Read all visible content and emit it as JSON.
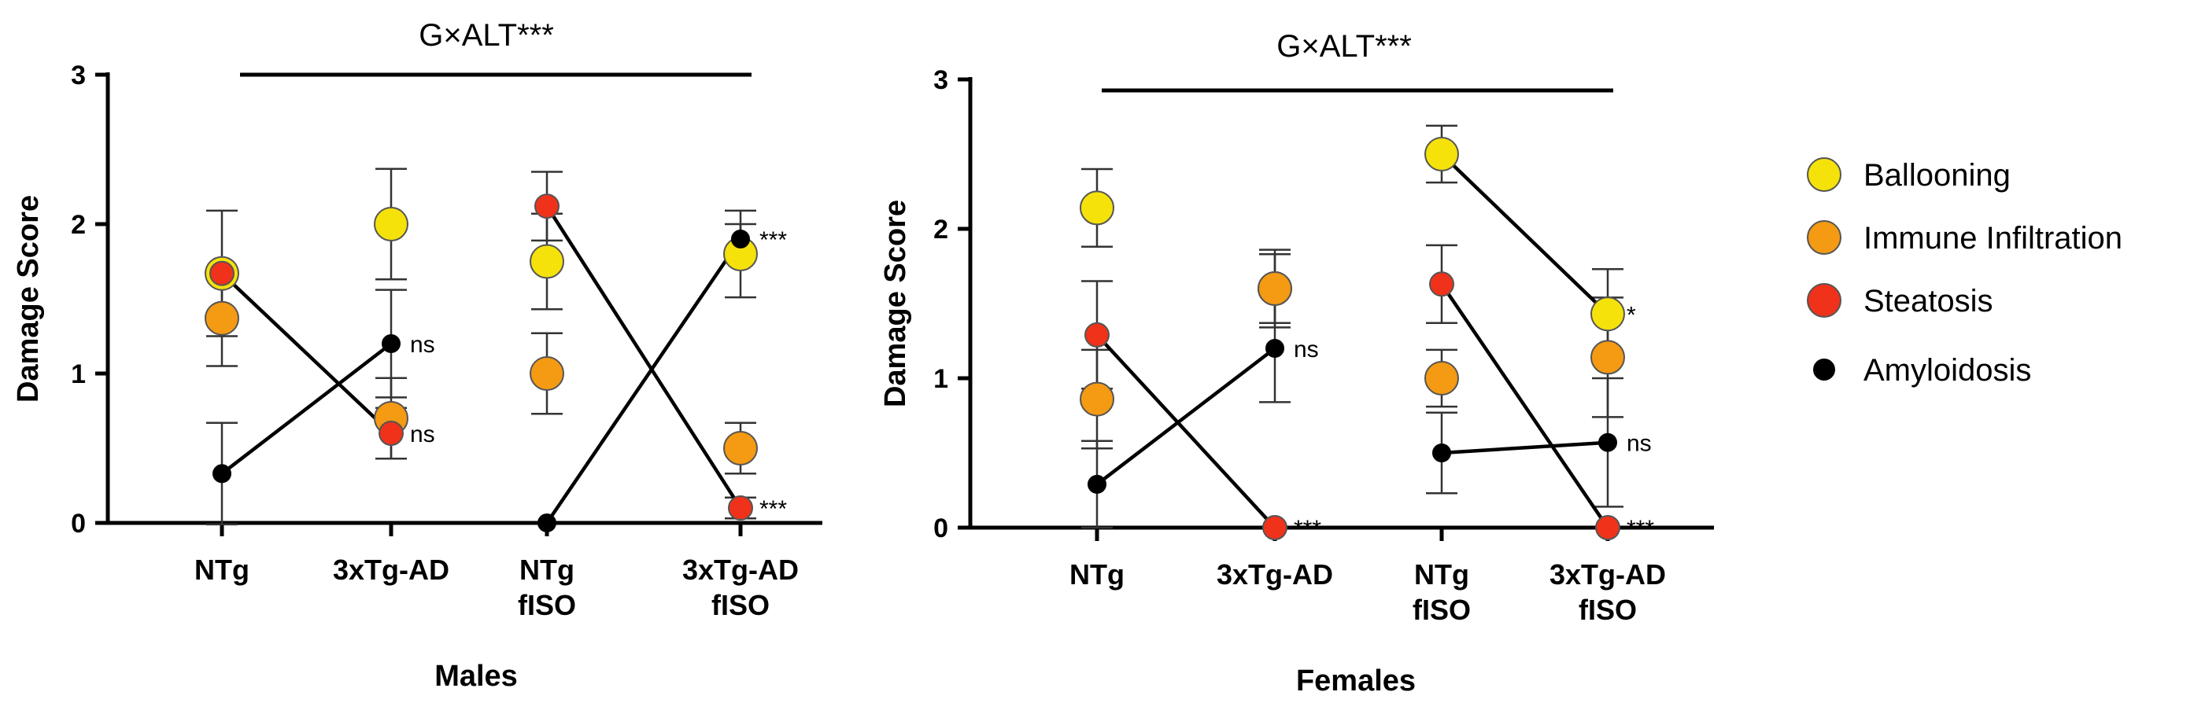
{
  "chart_data": [
    {
      "type": "scatter",
      "panel": "males",
      "xlabel": "Males",
      "ylabel": "Damage Score",
      "ylim": [
        0,
        3
      ],
      "yticks": [
        0,
        1,
        2,
        3
      ],
      "categories": [
        {
          "lines": [
            "NTg"
          ]
        },
        {
          "lines": [
            "3xTg-AD"
          ]
        },
        {
          "lines": [
            "NTg",
            "fISO"
          ]
        },
        {
          "lines": [
            "3xTg-AD",
            "fISO"
          ]
        }
      ],
      "annotation": "G×ALT***",
      "series": [
        {
          "name": "Ballooning",
          "color": "#f5e20a",
          "values": [
            1.67,
            2.0,
            1.75,
            1.8
          ],
          "err": [
            0.42,
            0.37,
            0.32,
            0.29
          ]
        },
        {
          "name": "Immune Infiltration",
          "color": "#f59a13",
          "values": [
            1.37,
            0.7,
            1.0,
            0.5
          ],
          "err": [
            0.32,
            0.27,
            0.27,
            0.17
          ]
        },
        {
          "name": "Steatosis",
          "color": "#f0321a",
          "values": [
            1.67,
            0.6,
            2.12,
            0.1
          ],
          "err": [
            0.0,
            0.17,
            0.23,
            0.07
          ]
        },
        {
          "name": "Amyloidosis",
          "color": "#000000",
          "values": [
            0.33,
            1.2,
            0.0,
            1.9
          ],
          "err": [
            0.34,
            0.36,
            0.0,
            0.1
          ]
        }
      ],
      "connectors": [
        {
          "series": "Steatosis",
          "from": 0,
          "to": 1
        },
        {
          "series": "Amyloidosis",
          "from": 0,
          "to": 1
        },
        {
          "series": "Steatosis",
          "from": 2,
          "to": 3
        },
        {
          "series": "Amyloidosis",
          "from": 2,
          "to": 3
        }
      ],
      "significance": [
        {
          "cat": 1,
          "y": 1.2,
          "text": "ns"
        },
        {
          "cat": 1,
          "y": 0.6,
          "text": "ns"
        },
        {
          "cat": 3,
          "y": 1.9,
          "text": "***"
        },
        {
          "cat": 3,
          "y": 0.1,
          "text": "***"
        }
      ]
    },
    {
      "type": "scatter",
      "panel": "females",
      "xlabel": "Females",
      "ylabel": "Damage Score",
      "ylim": [
        0,
        3
      ],
      "yticks": [
        0,
        1,
        2,
        3
      ],
      "categories": [
        {
          "lines": [
            "NTg"
          ]
        },
        {
          "lines": [
            "3xTg-AD"
          ]
        },
        {
          "lines": [
            "NTg",
            "fISO"
          ]
        },
        {
          "lines": [
            "3xTg-AD",
            "fISO"
          ]
        }
      ],
      "annotation": "G×ALT***",
      "series": [
        {
          "name": "Ballooning",
          "color": "#f5e20a",
          "values": [
            2.14,
            1.6,
            2.5,
            1.43
          ],
          "err": [
            0.26,
            0.26,
            0.19,
            0.3
          ]
        },
        {
          "name": "Immune Infiltration",
          "color": "#f59a13",
          "values": [
            0.86,
            1.6,
            1.0,
            1.14
          ],
          "err": [
            0.33,
            0.23,
            0.19,
            0.4
          ]
        },
        {
          "name": "Steatosis",
          "color": "#f0321a",
          "values": [
            1.29,
            0.0,
            1.63,
            0.0
          ],
          "err": [
            0.36,
            0.0,
            0.26,
            0.0
          ]
        },
        {
          "name": "Amyloidosis",
          "color": "#000000",
          "values": [
            0.29,
            1.2,
            0.5,
            0.57
          ],
          "err": [
            0.29,
            0.36,
            0.27,
            0.43
          ]
        }
      ],
      "connectors": [
        {
          "series": "Steatosis",
          "from": 0,
          "to": 1
        },
        {
          "series": "Amyloidosis",
          "from": 0,
          "to": 1
        },
        {
          "series": "Steatosis",
          "from": 2,
          "to": 3
        },
        {
          "series": "Amyloidosis",
          "from": 2,
          "to": 3
        },
        {
          "series": "Ballooning",
          "from": 2,
          "to": 3
        }
      ],
      "significance": [
        {
          "cat": 1,
          "y": 1.2,
          "text": "ns"
        },
        {
          "cat": 1,
          "y": 0.0,
          "text": "***"
        },
        {
          "cat": 3,
          "y": 1.43,
          "text": "*"
        },
        {
          "cat": 3,
          "y": 0.57,
          "text": "ns"
        },
        {
          "cat": 3,
          "y": 0.0,
          "text": "***"
        }
      ]
    }
  ],
  "legend": [
    {
      "label": "Ballooning",
      "color": "#f5e20a"
    },
    {
      "label": "Immune Infiltration",
      "color": "#f59a13"
    },
    {
      "label": "Steatosis",
      "color": "#f0321a"
    },
    {
      "label": "Amyloidosis",
      "color": "#000000"
    }
  ]
}
